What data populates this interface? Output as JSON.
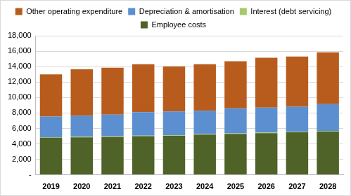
{
  "chart_data": {
    "type": "bar",
    "stacked": true,
    "grid": true,
    "legend": "top",
    "categories": [
      "2019",
      "2020",
      "2021",
      "2022",
      "2023",
      "2024",
      "2025",
      "2026",
      "2027",
      "2028"
    ],
    "series": [
      {
        "name": "Employee costs",
        "color": "#4f6228",
        "values": [
          4800,
          4850,
          4900,
          5000,
          5050,
          5200,
          5300,
          5400,
          5500,
          5600
        ]
      },
      {
        "name": "Interest (debt servicing)",
        "color": "#a6c96a",
        "values": [
          80,
          80,
          80,
          80,
          80,
          80,
          80,
          80,
          80,
          80
        ]
      },
      {
        "name": "Depreciation & amortisation",
        "color": "#5b8fd0",
        "values": [
          2670,
          2720,
          2820,
          3020,
          3070,
          3020,
          3220,
          3220,
          3220,
          3470
        ]
      },
      {
        "name": "Other operating expenditure",
        "color": "#b85c1e",
        "values": [
          5450,
          6000,
          6050,
          6200,
          5850,
          6000,
          6100,
          6450,
          6500,
          6700
        ]
      }
    ],
    "ylim": [
      0,
      18000
    ],
    "yticks": [
      {
        "value": 0,
        "label": "-"
      },
      {
        "value": 2000,
        "label": "2,000"
      },
      {
        "value": 4000,
        "label": "4,000"
      },
      {
        "value": 6000,
        "label": "6,000"
      },
      {
        "value": 8000,
        "label": "8,000"
      },
      {
        "value": 10000,
        "label": "10,000"
      },
      {
        "value": 12000,
        "label": "12,000"
      },
      {
        "value": 14000,
        "label": "14,000"
      },
      {
        "value": 16000,
        "label": "16,000"
      },
      {
        "value": 18000,
        "label": "18,000"
      }
    ]
  }
}
